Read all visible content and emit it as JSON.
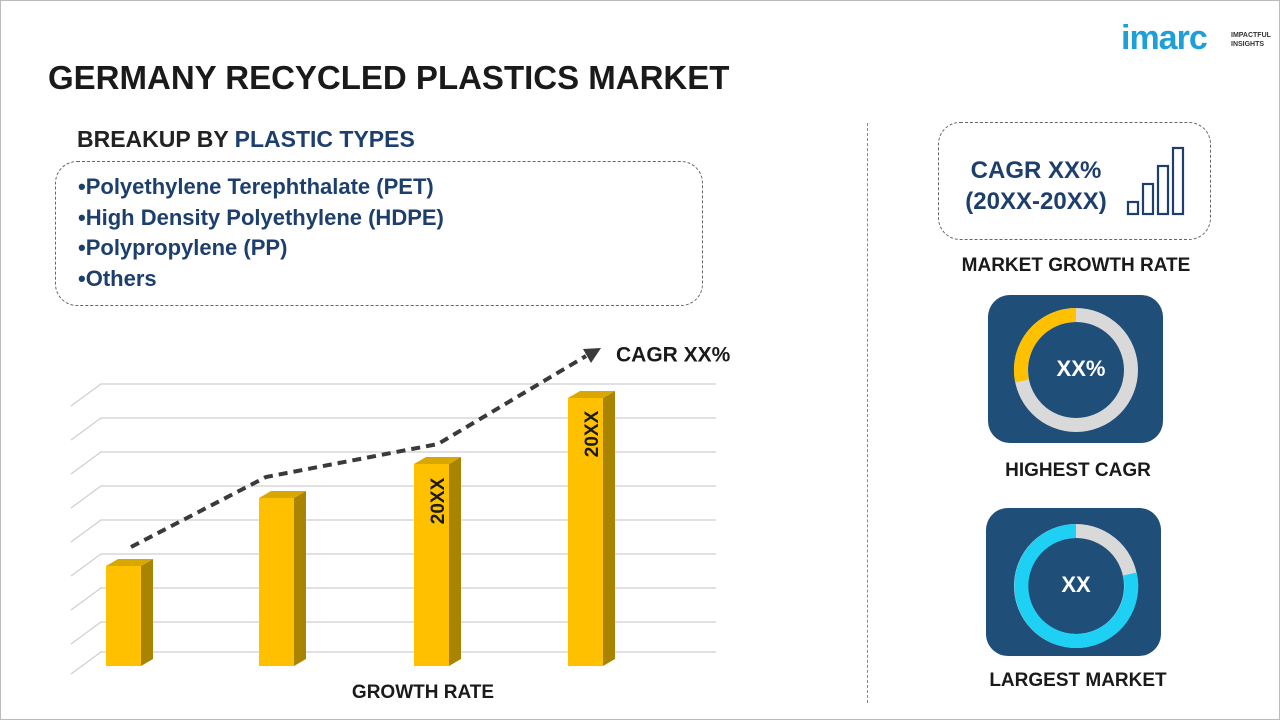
{
  "logo": {
    "name": "imarc",
    "tagline_1": "IMPACTFUL",
    "tagline_2": "INSIGHTS"
  },
  "header": {
    "title": "GERMANY RECYCLED PLASTICS MARKET"
  },
  "breakup": {
    "prefix": "BREAKUP BY",
    "highlight": "PLASTIC TYPES",
    "items": [
      "Polyethylene Terephthalate (PET)",
      "High Density Polyethylene (HDPE)",
      "Polypropylene (PP)",
      "Others"
    ]
  },
  "growth_chart": {
    "cagr_label": "CAGR XX%",
    "bar_labels": [
      "20XX",
      "20XX"
    ],
    "axis_label": "GROWTH RATE"
  },
  "side": {
    "cagr": {
      "line1": "CAGR XX%",
      "line2": "(20XX-20XX)",
      "caption": "MARKET GROWTH RATE"
    },
    "highest": {
      "value": "XX%",
      "caption": "HIGHEST CAGR"
    },
    "largest": {
      "value": "XX",
      "caption": "LARGEST MARKET"
    }
  }
}
